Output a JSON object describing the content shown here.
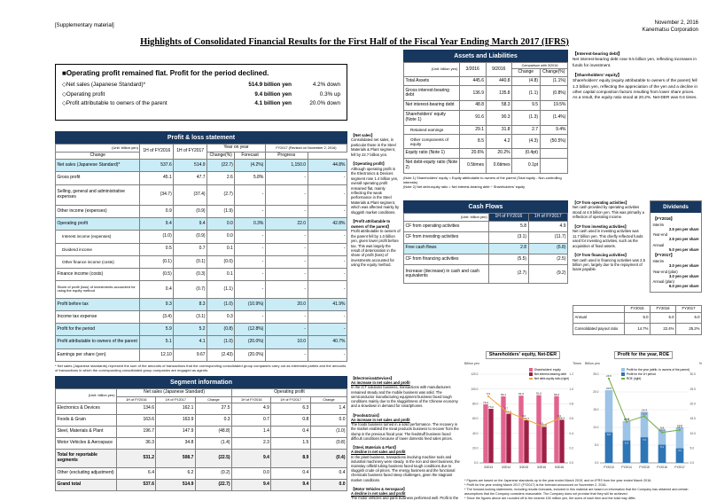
{
  "page": {
    "top_left": "[Supplementary material]",
    "date": "November 2, 2016",
    "company": "Kanematsu Corporation",
    "title": "Highlights of Consolidated Financial Results for the First Half of the Fiscal Year Ending March 2017 (IFRS)"
  },
  "summary": {
    "heading": "■Operating profit remained flat. Profit for the period declined.",
    "items": [
      {
        "label": "◇Net sales (Japanese Standard)*",
        "value": "514.9 billion yen",
        "change": "4.2% down"
      },
      {
        "label": "◇Operating profit",
        "value": "9.4 billion yen",
        "change": "0.3% up"
      },
      {
        "label": "◇Profit attributable to owners of the parent",
        "value": "4.1 billion yen",
        "change": "20.0% down"
      }
    ]
  },
  "pl": {
    "title": "Profit & loss statement",
    "unit": "(Unit: billion yen)",
    "col_groups": {
      "yoy": "Year on year",
      "forecast": "FY2017 (Revised on November 2, 2016)"
    },
    "columns": [
      "1H of FY2016",
      "1H of FY2017",
      "Change",
      "Change(%)",
      "Forecast",
      "Progress"
    ],
    "rows": [
      {
        "label": "Net sales (Japanese Standard)*",
        "cells": [
          "537.6",
          "514.9",
          "(22.7)",
          "(4.2%)",
          "1,150.0",
          "44.8%"
        ],
        "hl": true
      },
      {
        "label": "Gross profit",
        "cells": [
          "45.1",
          "47.7",
          "2.6",
          "5.8%",
          "-",
          "-"
        ]
      },
      {
        "label": "Selling, general and administrative expenses",
        "cells": [
          "(34.7)",
          "(37.4)",
          "(2.7)",
          "-",
          "-",
          "-"
        ]
      },
      {
        "label": "Other income (expenses)",
        "cells": [
          "0.9",
          "(0.9)",
          "(1.9)",
          "-",
          "-",
          "-"
        ]
      },
      {
        "label": "Operating profit",
        "cells": [
          "9.4",
          "9.4",
          "0.0",
          "0.3%",
          "22.0",
          "42.8%"
        ],
        "hl": true
      },
      {
        "label": "Interest income (expenses)",
        "cells": [
          "(1.0)",
          "(0.9)",
          "0.0",
          "-",
          "-",
          "-"
        ],
        "indent": true
      },
      {
        "label": "Dividend income",
        "cells": [
          "0.5",
          "0.7",
          "0.1",
          "-",
          "-",
          "-"
        ],
        "indent": true
      },
      {
        "label": "Other finance income (costs)",
        "cells": [
          "(0.1)",
          "(0.1)",
          "(0.0)",
          "-",
          "-",
          "-"
        ],
        "indent": true
      },
      {
        "label": "Finance income (costs)",
        "cells": [
          "(0.5)",
          "(0.3)",
          "0.1",
          "-",
          "-",
          "-"
        ]
      },
      {
        "label": "Share of profit (loss) of investments accounted for using the equity method",
        "cells": [
          "0.4",
          "(0.7)",
          "(1.1)",
          "-",
          "-",
          "-"
        ],
        "small": true
      },
      {
        "label": "Profit before tax",
        "cells": [
          "9.3",
          "8.3",
          "(1.0)",
          "(10.9%)",
          "20.0",
          "41.9%"
        ],
        "hl": true
      },
      {
        "label": "Income tax expense",
        "cells": [
          "(3.4)",
          "(3.1)",
          "0.3",
          "-",
          "-",
          "-"
        ]
      },
      {
        "label": "Profit for the period",
        "cells": [
          "5.9",
          "5.2",
          "(0.8)",
          "(12.8%)",
          "-",
          "-"
        ],
        "hl": true
      },
      {
        "label": "Profit attributable to owners of the parent",
        "cells": [
          "5.1",
          "4.1",
          "(1.0)",
          "(20.0%)",
          "10.0",
          "40.7%"
        ],
        "hl": true
      },
      {
        "label": "Earnings per share (yen)",
        "cells": [
          "12.10",
          "9.67",
          "(2.43)",
          "(20.0%)",
          "-",
          "-"
        ],
        "eps": true
      }
    ],
    "footnote": "* Net sales (Japanese standards) represent the sum of the amounts of transactions that the corresponding consolidated group companies carry out as interested parties and the amounts of transactions in which the corresponding consolidated group companies are engaged as agents."
  },
  "pl_notes": [
    {
      "heading": "【Net sales】",
      "body": "Consolidated net sales, in particular those in the Steel Materials & Plant segment, fell by 22.7 billion yen."
    },
    {
      "heading": "【Operating profit】",
      "body": "Although operating profit in the Electronics & Devices segment rose 1.4 billion yen, overall operating profit remained flat, mainly reflecting the weak performance in the Steel Materials & Plant segment, which was affected mainly by sluggish market conditions."
    },
    {
      "heading": "【Profit attributable to owners of the parent】",
      "body": "Profit attributable to owners of the parent fell by 1.0 billion yen, given lower profit before tax. This was largely the result of deterioration in the share of profit (loss) of investments accounted for using the equity method."
    }
  ],
  "assets": {
    "title": "Assets and Liabilities",
    "unit": "(Unit: billion yen)",
    "comparison": "Comparison with 3/2016",
    "columns": [
      "3/2016",
      "9/2016",
      "Change",
      "Change(%)"
    ],
    "rows": [
      {
        "label": "Total Assets",
        "cells": [
          "445.6",
          "440.8",
          "(4.8)",
          "(1.1%)"
        ]
      },
      {
        "label": "Gross interest-bearing debt",
        "cells": [
          "136.9",
          "135.8",
          "(1.1)",
          "(0.8%)"
        ]
      },
      {
        "label": "Net interest-bearing debt",
        "cells": [
          "48.8",
          "58.3",
          "9.5",
          "19.5%"
        ]
      },
      {
        "label": "Shareholders' equity (Note 1)",
        "cells": [
          "91.6",
          "90.3",
          "(1.3)",
          "(1.4%)"
        ]
      },
      {
        "label": "Retained earnings",
        "cells": [
          "29.1",
          "31.8",
          "2.7",
          "9.4%"
        ],
        "indent": true
      },
      {
        "label": "Other components of equity",
        "cells": [
          "8.5",
          "4.2",
          "(4.3)",
          "(50.5%)"
        ],
        "indent": true
      },
      {
        "label": "Equity ratio (Note 1)",
        "cells": [
          "20.6%",
          "20.2%",
          "(0.4pt)",
          ""
        ]
      },
      {
        "label": "Net debt-equity ratio (Note 2)",
        "cells": [
          "0.5times",
          "0.6times",
          "0.1pt",
          ""
        ]
      }
    ],
    "notes": [
      "(Note 1) Shareholders' equity = Equity attributable to owners of the parent (Total equity - Non-controlling interests)",
      "(Note 2) Net debt-equity ratio = Net interest-bearing debt ÷ Shareholders' equity"
    ]
  },
  "assets_notes": [
    {
      "heading": "【Interest-bearing debt】",
      "body": "Net interest-bearing debt rose 9.5 billion yen, reflecting increases in funds for investment."
    },
    {
      "heading": "【Shareholders' equity】",
      "body": "Shareholders' equity (equity attributable to owners of the parent) fell 1.3 billion yen, reflecting the appreciation of the yen and a decline in other capital composition factors resulting from lower share prices.\nAs a result, the equity ratio stood at 20.2%. Net-DER was 0.6 times."
    }
  ],
  "cashflows": {
    "title": "Cash Flows",
    "unit": "(Unit: billion yen)",
    "columns": [
      "1H of FY2016",
      "1H of FY2017"
    ],
    "rows": [
      {
        "label": "CF from operating activities",
        "cells": [
          "5.8",
          "4.9"
        ]
      },
      {
        "label": "CF from investing activities",
        "cells": [
          "(3.1)",
          "(11.7)"
        ]
      },
      {
        "label": "Free cash flows",
        "cells": [
          "2.8",
          "(6.8)"
        ],
        "hl": true
      },
      {
        "label": "CF from financing activities",
        "cells": [
          "(5.5)",
          "(2.5)"
        ]
      },
      {
        "label": "Increase (decrease) in cash and cash equivalents",
        "cells": [
          "(2.7)",
          "(9.2)"
        ]
      }
    ]
  },
  "cf_notes": [
    {
      "heading": "【CF from operating activities】",
      "body": "Net cash provided by operating activities stood at 4.9 billion yen. This was primarily a reflection of operating income."
    },
    {
      "heading": "【CF from investing activities】",
      "body": "Net cash used in investing activities was 11.7 billion yen. This chiefly reflected funds used for investing activities, such as the acquisition of fixed assets."
    },
    {
      "heading": "【CF from financing activities】",
      "body": "Net cash used in financing activities was 2.5 billion yen, largely due to the repayment of loans payable."
    }
  ],
  "dividends": {
    "title": "Dividends",
    "groups": [
      {
        "heading": "【FY2016】",
        "rows": [
          {
            "label": "Interim",
            "value": "2.5 yen per share"
          },
          {
            "label": "Year-end",
            "value": "2.5 yen per share"
          },
          {
            "label": "Annual",
            "value": "5.0 yen per share"
          }
        ]
      },
      {
        "heading": "【FY2017】",
        "rows": [
          {
            "label": "Interim",
            "value": "3.0 yen per share"
          },
          {
            "label": "Year-end (plan)",
            "value": "3.0 yen per share"
          },
          {
            "label": "Annual (plan)",
            "value": "6.0 yen per share"
          }
        ]
      }
    ],
    "payout": {
      "columns": [
        "FY2015",
        "FY2016",
        "FY2017"
      ],
      "rows": [
        {
          "label": "Annual",
          "cells": [
            "5.0",
            "5.0",
            "6.0"
          ]
        },
        {
          "label": "Consolidated payout ratio",
          "cells": [
            "14.7%",
            "22.4%",
            "25.2%"
          ]
        }
      ]
    }
  },
  "segments": {
    "title": "Segment information",
    "unit": "(Unit: billion yen)",
    "group_headers": [
      "Net sales (Japanese Standard)",
      "Operating profit"
    ],
    "columns": [
      "1H of FY2016",
      "1H of FY2017",
      "Change",
      "1H of FY2016",
      "1H of FY2017",
      "Change"
    ],
    "rows": [
      {
        "label": "Electronics & Devices",
        "cells": [
          "134.6",
          "162.1",
          "27.5",
          "4.9",
          "6.3",
          "1.4"
        ]
      },
      {
        "label": "Foods & Grain",
        "cells": [
          "163.6",
          "163.9",
          "0.3",
          "0.7",
          "0.8",
          "0.0"
        ]
      },
      {
        "label": "Steel, Materials & Plant",
        "cells": [
          "196.7",
          "147.9",
          "(48.8)",
          "1.4",
          "0.4",
          "(1.0)"
        ]
      },
      {
        "label": "Motor Vehicles & Aerospace",
        "cells": [
          "36.3",
          "34.8",
          "(1.4)",
          "2.3",
          "1.5",
          "(0.8)"
        ]
      },
      {
        "label": "Total for reportable segments",
        "cells": [
          "531.2",
          "508.7",
          "(22.5)",
          "9.4",
          "8.9",
          "(0.4)"
        ],
        "tot": true
      },
      {
        "label": "Other (excluding adjustment)",
        "cells": [
          "6.4",
          "6.2",
          "(0.2)",
          "0.0",
          "0.4",
          "0.4"
        ]
      },
      {
        "label": "Grand total",
        "cells": [
          "537.6",
          "514.9",
          "(22.7)",
          "9.4",
          "9.4",
          "0.0"
        ],
        "tot": true
      }
    ]
  },
  "segment_notes": [
    {
      "heading": "【Electronics&Devices】",
      "status": "An increase in net sales and profit",
      "body": "In the ICT solutions business, transactions with manufacturers remained steady and the mobile business was solid. The semiconductor manufacturing equipment business faced tough conditions mainly due to the sluggishness of the Chinese economy and a slowdown in demand for smartphones."
    },
    {
      "heading": "【Foods&Grain】",
      "status": "An increase in net sales and profit",
      "body": "The foods business turned in a solid performance. The recovery in the market enabled the meat products business to recover from the slump in the previous fiscal year. The feedstuff business faced difficult conditions because of lower domestic feed sales prices."
    },
    {
      "heading": "【Steel, Materials & Plant】",
      "status": "A decline in net sales and profit",
      "body": "In the plant business, transactions involving machine tools and industrial machinery were steady. In the iron and steel business, the mainstay oilfield tubing business faced tough conditions due to sluggish crude oil prices. The energy business and the functional chemicals business faced steep challenges, given the stagnant market conditions."
    },
    {
      "heading": "【Motor Vehicles & Aerospace】",
      "status": "A decline in net sales and profit",
      "body": "The motor vehicles and parts business performed well. Profit in the aerospace business declined as transactions of aircraft parts were in an in-between season."
    }
  ],
  "chart_footnotes": [
    "* Figures are based on the Japanese standards up to the year ended March 2015, and on IFRS from the year ended March 2016.",
    "* Profit for the year ending March 2017 (FY2017) is the forecast announced on November 2, 2016."
  ],
  "page_footnotes": [
    "* The forward-looking statements, including results forecasts, included in this material are based on information that the Company has obtained and certain assumptions that the Company considers reasonable. The Company does not promise that they will be achieved.",
    "* Since the figures above are rounded off to the nearest 100 million yen, the sums of each item and the total may differ.",
    "* FY2016 (the fiscal year ended March 31, 2016), FY2017 (the fiscal year ending March 31, 2017)"
  ],
  "chart_data": [
    {
      "type": "bar",
      "title": "Shareholders' equity, Net-DER",
      "unit_left": "Billion yen",
      "unit_right": "Times",
      "categories": [
        "3/2013",
        "3/2014",
        "3/2015",
        "3/2016",
        "9/2016"
      ],
      "series": [
        {
          "name": "Shareholders' equity",
          "kind": "bar",
          "color": "#e2638e",
          "values": [
            79.2,
            90.1,
            91.0,
            91.6,
            90.3
          ]
        },
        {
          "name": "Net interest-bearing debt",
          "kind": "bar",
          "color": "#9e1f45",
          "values": [
            73.2,
            66.5,
            57.7,
            48.8,
            58.3
          ]
        },
        {
          "name": "Net debt-equity ratio (right)",
          "kind": "line",
          "color": "#f2a33c",
          "values": [
            0.9,
            0.7,
            0.6,
            0.5,
            0.6
          ]
        }
      ],
      "ylim_left": [
        0,
        120
      ],
      "left_ticks": [
        "0.0",
        "20.0",
        "40.0",
        "60.0",
        "80.0",
        "100.0",
        "120.0"
      ],
      "ylim_right": [
        0,
        1.2
      ],
      "right_ticks": [
        "0.0",
        "0.2",
        "0.4",
        "0.6",
        "0.8",
        "1.0",
        "1.2"
      ],
      "legend_position": "top-right",
      "grid": true
    },
    {
      "type": "bar",
      "title": "Profit for the year, ROE",
      "unit_left": "Billion yen",
      "unit_right": "%",
      "categories": [
        "FY2013",
        "FY2014",
        "FY2015",
        "FY2016",
        "FY2017"
      ],
      "series": [
        {
          "name": "Profit for the year (attrib. to owners of the parent)",
          "kind": "bar",
          "color": "#9dc3e6",
          "values": [
            20.5,
            11.8,
            14.4,
            9.4,
            10.0
          ]
        },
        {
          "name": "Profit for the 1H period",
          "kind": "overlay",
          "color": "#2e75b6",
          "values": [
            8.6,
            6.3,
            7.2,
            5.1,
            4.1
          ]
        },
        {
          "name": "ROE (right)",
          "kind": "line",
          "color": "#70ad47",
          "values": [
            28.5,
            13.9,
            15.8,
            10.3,
            11.1
          ]
        }
      ],
      "ylim_left": [
        0,
        25
      ],
      "left_ticks": [
        "0.0",
        "5.0",
        "10.0",
        "15.0",
        "20.0",
        "25.0"
      ],
      "ylim_right": [
        0,
        30
      ],
      "right_ticks": [
        "0.0",
        "5.0",
        "10.0",
        "15.0",
        "20.0",
        "25.0",
        "30.0"
      ],
      "legend_position": "top-right",
      "grid": true
    }
  ]
}
